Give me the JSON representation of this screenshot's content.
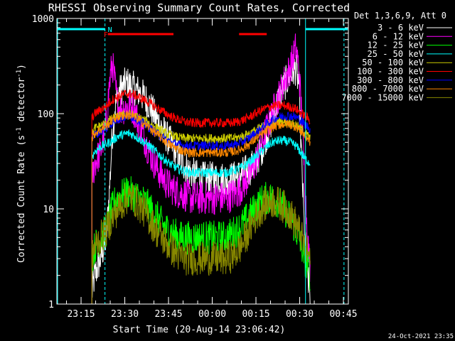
{
  "title": "RHESSI Observing Summary Count Rates, Corrected",
  "xlabel": "Start Time (20-Aug-14 23:06:42)",
  "ylabel_main": "Corrected Count Rate (s",
  "ylabel_sup1": "-1",
  "ylabel_mid": " detector",
  "ylabel_sup2": "-1",
  "ylabel_end": ")",
  "legend_header": "Det 1,3,6,9, Att 0",
  "footer_date": "24-Oct-2021 23:35",
  "flag_labels": {
    "F": "F",
    "N": "N"
  },
  "colors": {
    "bg": "#000000",
    "axis": "#ffffff",
    "night": "#00ffff",
    "flare": "#ff0000"
  },
  "chart_data": {
    "type": "line",
    "title": "RHESSI Observing Summary Count Rates, Corrected",
    "xlabel": "Start Time (20-Aug-14 23:06:42)",
    "ylabel": "Corrected Count Rate (s^-1 detector^-1)",
    "yscale": "log",
    "ylim": [
      1,
      1000
    ],
    "xlim_minutes": [
      0,
      100
    ],
    "x_ticks": [
      {
        "m": 8.3,
        "label": "23:15"
      },
      {
        "m": 23.3,
        "label": "23:30"
      },
      {
        "m": 38.3,
        "label": "23:45"
      },
      {
        "m": 53.3,
        "label": "00:00"
      },
      {
        "m": 68.3,
        "label": "00:15"
      },
      {
        "m": 83.3,
        "label": "00:30"
      },
      {
        "m": 98.3,
        "label": "00:45"
      }
    ],
    "y_ticks": [
      {
        "v": 1,
        "label": "1"
      },
      {
        "v": 10,
        "label": "10"
      },
      {
        "v": 100,
        "label": "100"
      },
      {
        "v": 1000,
        "label": "1000"
      }
    ],
    "x_units": "minutes after 23:06:42",
    "night_intervals": [
      [
        0,
        16.5
      ],
      [
        85.3,
        99.8
      ]
    ],
    "flare_intervals": [
      [
        17.5,
        40
      ],
      [
        62.5,
        72
      ]
    ],
    "data_gap_lines": [
      16.5,
      85.3,
      98.5
    ],
    "series": [
      {
        "name": "3 - 6 keV",
        "color": "#ffffff",
        "x": [
          12,
          13,
          15,
          17,
          18,
          19,
          20,
          21,
          22,
          23,
          24,
          25,
          26,
          27,
          28,
          30,
          32,
          34,
          36,
          38,
          40,
          42,
          44,
          46,
          48,
          50,
          52,
          54,
          56,
          58,
          60,
          62,
          64,
          66,
          68,
          70,
          72,
          74,
          76,
          78,
          80,
          82,
          83,
          84,
          85,
          86,
          87
        ],
        "y": [
          1.3,
          2,
          3,
          5,
          15,
          60,
          120,
          160,
          180,
          200,
          210,
          200,
          190,
          180,
          170,
          150,
          120,
          90,
          70,
          55,
          45,
          35,
          28,
          24,
          22,
          21,
          21,
          21,
          21,
          21,
          21,
          22,
          24,
          26,
          30,
          40,
          60,
          90,
          140,
          200,
          250,
          300,
          200,
          30,
          5,
          2,
          1.2
        ]
      },
      {
        "name": "6 - 12 keV",
        "color": "#ff00ff",
        "x": [
          12,
          13,
          15,
          17,
          18,
          19,
          20,
          21,
          22,
          23,
          24,
          25,
          26,
          27,
          28,
          30,
          32,
          34,
          36,
          38,
          40,
          42,
          44,
          46,
          48,
          50,
          52,
          54,
          56,
          58,
          60,
          62,
          64,
          66,
          68,
          70,
          72,
          74,
          76,
          78,
          80,
          82,
          83,
          84,
          85,
          86,
          87
        ],
        "y": [
          20,
          30,
          40,
          80,
          200,
          350,
          200,
          120,
          110,
          115,
          118,
          120,
          115,
          100,
          80,
          55,
          38,
          28,
          22,
          18,
          16,
          15,
          14,
          13,
          13,
          13,
          13,
          13,
          13,
          13,
          14,
          15,
          18,
          22,
          30,
          45,
          70,
          100,
          150,
          220,
          300,
          500,
          300,
          100,
          20,
          5,
          2
        ]
      },
      {
        "name": "12 - 25 keV",
        "color": "#00ff00",
        "x": [
          12,
          13,
          15,
          17,
          18,
          19,
          20,
          21,
          22,
          23,
          24,
          25,
          26,
          27,
          28,
          30,
          32,
          34,
          36,
          38,
          40,
          42,
          44,
          46,
          48,
          50,
          52,
          54,
          56,
          58,
          60,
          62,
          64,
          66,
          68,
          70,
          72,
          74,
          76,
          78,
          80,
          82,
          83,
          84,
          85,
          86,
          87
        ],
        "y": [
          3,
          4,
          5,
          6,
          8,
          10,
          12,
          13,
          14,
          14,
          15,
          15,
          14,
          14,
          13,
          12,
          10,
          8.5,
          7,
          6,
          5.5,
          5,
          5,
          5,
          5,
          5,
          5,
          5,
          5,
          5,
          5.5,
          6,
          7,
          8.5,
          10,
          12,
          13,
          13,
          12,
          10,
          8,
          6,
          5,
          4,
          3,
          2.5,
          2
        ]
      },
      {
        "name": "25 - 50 keV",
        "color": "#00ffff",
        "x": [
          12,
          13,
          15,
          17,
          18,
          19,
          20,
          21,
          22,
          23,
          24,
          25,
          26,
          27,
          28,
          30,
          32,
          34,
          36,
          38,
          40,
          42,
          44,
          46,
          48,
          50,
          52,
          54,
          56,
          58,
          60,
          62,
          64,
          66,
          68,
          70,
          72,
          74,
          76,
          78,
          80,
          82,
          83,
          84,
          85,
          86,
          87
        ],
        "y": [
          35,
          40,
          45,
          48,
          50,
          52,
          55,
          58,
          60,
          60,
          62,
          62,
          60,
          58,
          55,
          50,
          45,
          40,
          35,
          31,
          28,
          26,
          25,
          24,
          24,
          24,
          24,
          24,
          24,
          24,
          25,
          26,
          28,
          31,
          35,
          40,
          45,
          50,
          52,
          52,
          50,
          46,
          42,
          38,
          34,
          32,
          30
        ]
      },
      {
        "name": "50 - 100 keV",
        "color": "#cccc00",
        "x": [
          12,
          13,
          15,
          17,
          18,
          19,
          20,
          21,
          22,
          23,
          24,
          25,
          26,
          27,
          28,
          30,
          32,
          34,
          36,
          38,
          40,
          42,
          44,
          46,
          48,
          50,
          52,
          54,
          56,
          58,
          60,
          62,
          64,
          66,
          68,
          70,
          72,
          74,
          76,
          78,
          80,
          82,
          83,
          84,
          85,
          86,
          87
        ],
        "y": [
          60,
          70,
          75,
          80,
          85,
          88,
          90,
          93,
          95,
          97,
          98,
          98,
          96,
          94,
          90,
          85,
          78,
          72,
          66,
          61,
          58,
          56,
          55,
          55,
          55,
          55,
          55,
          55,
          55,
          55,
          55,
          56,
          58,
          62,
          66,
          72,
          76,
          80,
          82,
          82,
          80,
          76,
          72,
          68,
          63,
          59,
          55
        ]
      },
      {
        "name": "100 - 300 keV",
        "color": "#ff0000",
        "x": [
          12,
          13,
          15,
          17,
          18,
          19,
          20,
          21,
          22,
          23,
          24,
          25,
          26,
          27,
          28,
          30,
          32,
          34,
          36,
          38,
          40,
          42,
          44,
          46,
          48,
          50,
          52,
          54,
          56,
          58,
          60,
          62,
          64,
          66,
          68,
          70,
          72,
          74,
          76,
          78,
          80,
          82,
          83,
          84,
          85,
          86,
          87
        ],
        "y": [
          90,
          100,
          110,
          120,
          130,
          140,
          145,
          150,
          155,
          160,
          162,
          162,
          160,
          155,
          150,
          140,
          128,
          117,
          107,
          98,
          91,
          86,
          82,
          80,
          80,
          80,
          80,
          80,
          80,
          80,
          80,
          82,
          86,
          92,
          100,
          108,
          115,
          120,
          122,
          122,
          118,
          112,
          106,
          100,
          95,
          90,
          85
        ]
      },
      {
        "name": "300 - 800 keV",
        "color": "#0000ff",
        "x": [
          12,
          13,
          15,
          17,
          18,
          19,
          20,
          21,
          22,
          23,
          24,
          25,
          26,
          27,
          28,
          30,
          32,
          34,
          36,
          38,
          40,
          42,
          44,
          46,
          48,
          50,
          52,
          54,
          56,
          58,
          60,
          62,
          64,
          66,
          68,
          70,
          72,
          74,
          76,
          78,
          80,
          82,
          83,
          84,
          85,
          86,
          87
        ],
        "y": [
          55,
          60,
          65,
          70,
          75,
          80,
          85,
          88,
          90,
          92,
          94,
          94,
          92,
          90,
          85,
          78,
          70,
          63,
          57,
          52,
          49,
          47,
          46,
          46,
          46,
          46,
          46,
          46,
          46,
          46,
          47,
          48,
          51,
          56,
          62,
          70,
          78,
          86,
          92,
          95,
          95,
          92,
          88,
          83,
          78,
          73,
          68
        ]
      },
      {
        "name": "800 - 7000 keV",
        "color": "#ff8800",
        "x": [
          12,
          13,
          15,
          17,
          18,
          19,
          20,
          21,
          22,
          23,
          24,
          25,
          26,
          27,
          28,
          30,
          32,
          34,
          36,
          38,
          40,
          42,
          44,
          46,
          48,
          50,
          52,
          54,
          56,
          58,
          60,
          62,
          64,
          66,
          68,
          70,
          72,
          74,
          76,
          78,
          80,
          82,
          83,
          84,
          85,
          86,
          87
        ],
        "y": [
          55,
          62,
          68,
          74,
          80,
          85,
          90,
          92,
          95,
          96,
          97,
          96,
          94,
          90,
          86,
          78,
          70,
          62,
          55,
          49,
          45,
          42,
          40,
          39,
          39,
          39,
          39,
          39,
          39,
          39,
          40,
          41,
          44,
          48,
          54,
          60,
          66,
          72,
          76,
          78,
          77,
          73,
          69,
          64,
          59,
          55,
          50
        ]
      },
      {
        "name": "7000 - 15000 keV",
        "color": "#888800",
        "x": [
          12,
          13,
          15,
          17,
          18,
          19,
          20,
          21,
          22,
          23,
          24,
          25,
          26,
          27,
          28,
          30,
          32,
          34,
          36,
          38,
          40,
          42,
          44,
          46,
          48,
          50,
          52,
          54,
          56,
          58,
          60,
          62,
          64,
          66,
          68,
          70,
          72,
          74,
          76,
          78,
          80,
          82,
          83,
          84,
          85,
          86,
          87
        ],
        "y": [
          3,
          4,
          5,
          6,
          7,
          8,
          9,
          10,
          11,
          12,
          13,
          13,
          13,
          12,
          11,
          9.5,
          7.5,
          6,
          5,
          4.2,
          3.6,
          3.2,
          3,
          3,
          3,
          3,
          3,
          3,
          3,
          3,
          3.2,
          3.6,
          4.5,
          6,
          8,
          10,
          11.5,
          12,
          11.5,
          10.5,
          9,
          7,
          6,
          5,
          4,
          3.5,
          3
        ]
      }
    ]
  }
}
